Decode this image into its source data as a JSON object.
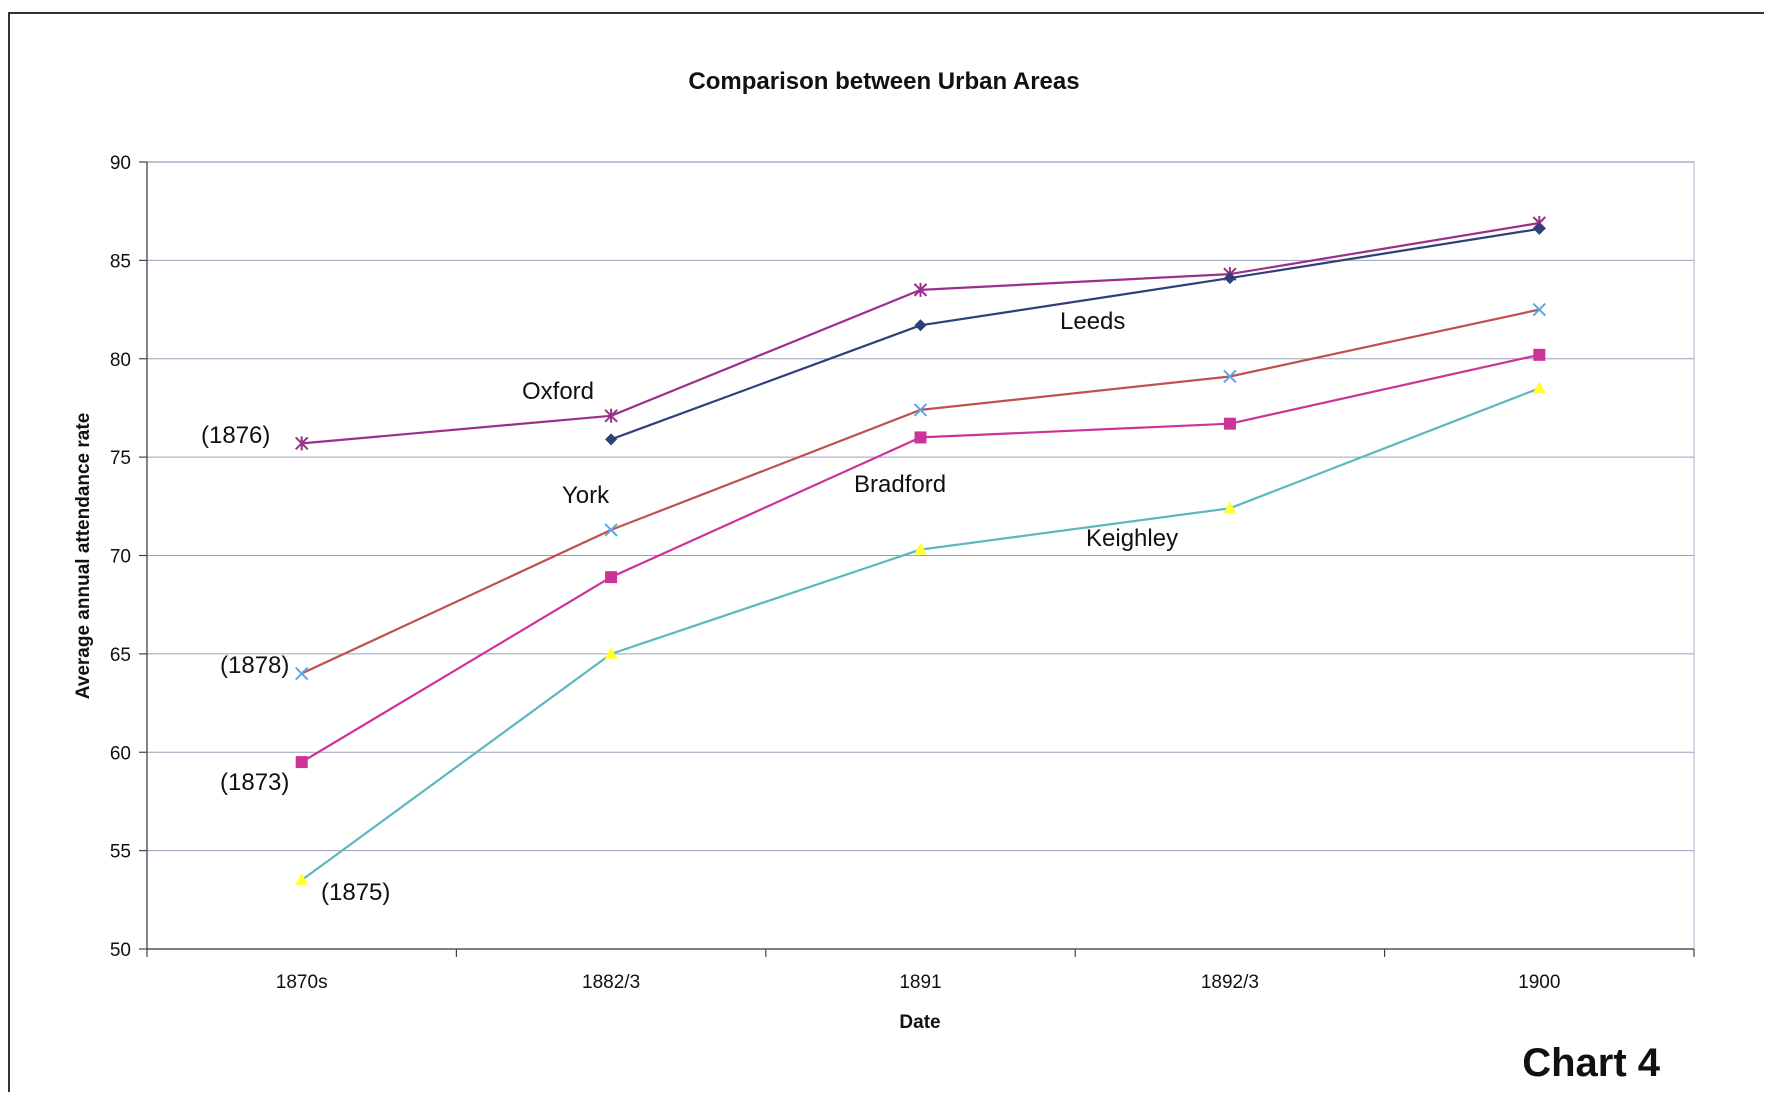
{
  "chart_data": {
    "type": "line",
    "title": "Comparison between Urban Areas",
    "xlabel": "Date",
    "ylabel": "Average annual attendance rate",
    "categories": [
      "1870s",
      "1882/3",
      "1891",
      "1892/3",
      "1900"
    ],
    "ylim": [
      50,
      90
    ],
    "yticks": [
      50,
      55,
      60,
      65,
      70,
      75,
      80,
      85,
      90
    ],
    "grid": true,
    "legend": "none",
    "series": [
      {
        "name": "Oxford",
        "color": "#9b2f8c",
        "marker": "asterisk",
        "values": [
          75.7,
          77.1,
          83.5,
          84.3,
          86.9
        ]
      },
      {
        "name": "Leeds",
        "color": "#2e3f7a",
        "marker": "diamond",
        "values": [
          null,
          75.9,
          81.7,
          84.1,
          86.6
        ]
      },
      {
        "name": "York",
        "color": "#c0504d",
        "marker": "x",
        "marker_color": "#5aa7e6",
        "values": [
          64.0,
          71.3,
          77.4,
          79.1,
          82.5
        ]
      },
      {
        "name": "Bradford",
        "color": "#cc3399",
        "marker": "square",
        "values": [
          59.5,
          68.9,
          76.0,
          76.7,
          80.2
        ]
      },
      {
        "name": "Keighley",
        "color": "#5bb8bf",
        "marker": "triangle",
        "marker_color": "#ffff33",
        "values": [
          53.5,
          65.0,
          70.3,
          72.4,
          78.5
        ]
      }
    ],
    "annotations": [
      "(1876)",
      "(1878)",
      "(1873)",
      "(1875)"
    ],
    "chart_label": "Chart 4"
  }
}
